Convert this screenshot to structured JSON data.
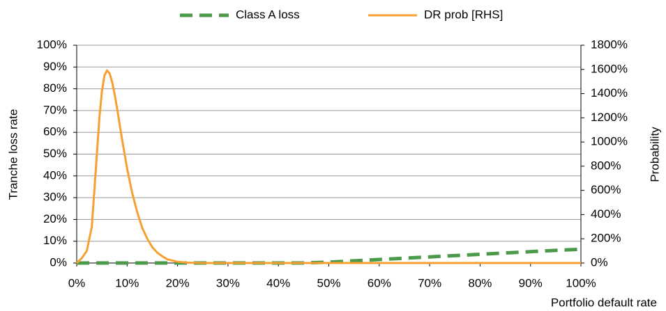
{
  "chart_data": {
    "type": "line",
    "xlabel": "Portfolio default rate",
    "ylabel": "Tranche loss rate",
    "y2label": "Probability",
    "xlim": [
      0,
      100
    ],
    "xticks": [
      {
        "value": 0,
        "label": "0%"
      },
      {
        "value": 10,
        "label": "10%"
      },
      {
        "value": 20,
        "label": "20%"
      },
      {
        "value": 30,
        "label": "30%"
      },
      {
        "value": 40,
        "label": "40%"
      },
      {
        "value": 50,
        "label": "50%"
      },
      {
        "value": 60,
        "label": "60%"
      },
      {
        "value": 70,
        "label": "70%"
      },
      {
        "value": 80,
        "label": "80%"
      },
      {
        "value": 90,
        "label": "90%"
      },
      {
        "value": 100,
        "label": "100%"
      }
    ],
    "ylim": [
      0,
      100
    ],
    "yticks": [
      {
        "value": 0,
        "label": "0%"
      },
      {
        "value": 10,
        "label": "10%"
      },
      {
        "value": 20,
        "label": "20%"
      },
      {
        "value": 30,
        "label": "30%"
      },
      {
        "value": 40,
        "label": "40%"
      },
      {
        "value": 50,
        "label": "50%"
      },
      {
        "value": 60,
        "label": "60%"
      },
      {
        "value": 70,
        "label": "70%"
      },
      {
        "value": 80,
        "label": "80%"
      },
      {
        "value": 90,
        "label": "90%"
      },
      {
        "value": 100,
        "label": "100%"
      }
    ],
    "y2lim": [
      0,
      1800
    ],
    "y2ticks": [
      {
        "value": 0,
        "label": "0%"
      },
      {
        "value": 200,
        "label": "200%"
      },
      {
        "value": 400,
        "label": "400%"
      },
      {
        "value": 600,
        "label": "600%"
      },
      {
        "value": 800,
        "label": "800%"
      },
      {
        "value": 1000,
        "label": "1000%"
      },
      {
        "value": 1200,
        "label": "1200%"
      },
      {
        "value": 1400,
        "label": "1400%"
      },
      {
        "value": 1600,
        "label": "1600%"
      },
      {
        "value": 1800,
        "label": "1800%"
      }
    ],
    "grid": true,
    "legend": "top",
    "series": [
      {
        "name": "Class A loss",
        "color": "#4a9a4a",
        "dash": true,
        "x": [
          0,
          10,
          20,
          30,
          40,
          45,
          50,
          55,
          60,
          65,
          70,
          75,
          80,
          85,
          90,
          95,
          100
        ],
        "values": [
          0,
          0,
          0,
          0,
          0,
          0,
          0.4,
          1.0,
          1.6,
          2.2,
          2.8,
          3.4,
          4.0,
          4.6,
          5.2,
          5.8,
          6.3
        ]
      },
      {
        "name": "DR prob [RHS]",
        "color": "#f5a030",
        "axis": "y2",
        "x": [
          0,
          1,
          2,
          3,
          3.5,
          4,
          4.5,
          5,
          5.5,
          6,
          6.5,
          7,
          7.5,
          8,
          9,
          10,
          11,
          12,
          13,
          14,
          15,
          16,
          17,
          18,
          20,
          22,
          25,
          30,
          40,
          50,
          60,
          70,
          80,
          90,
          100
        ],
        "values": [
          0,
          40,
          100,
          300,
          600,
          900,
          1200,
          1420,
          1550,
          1590,
          1570,
          1500,
          1400,
          1280,
          1020,
          780,
          580,
          420,
          290,
          200,
          130,
          85,
          55,
          30,
          10,
          3,
          0,
          0,
          0,
          0,
          0,
          0,
          0,
          0,
          0
        ]
      }
    ]
  }
}
